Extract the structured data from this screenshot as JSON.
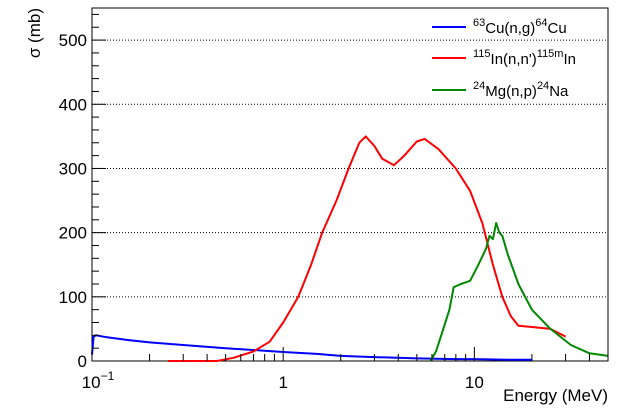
{
  "chart_data": {
    "type": "line",
    "xlabel": "Energy (MeV)",
    "ylabel": "σ (mb)",
    "x_scale": "log",
    "xlim": [
      0.1,
      50
    ],
    "ylim": [
      0,
      550
    ],
    "grid": "horizontal-dotted",
    "legend_position": "top-right",
    "x_ticks": [
      {
        "value": 0.1,
        "base": "10",
        "exp": "−1"
      },
      {
        "value": 1,
        "label": "1"
      },
      {
        "value": 10,
        "label": "10"
      }
    ],
    "y_ticks": [
      0,
      100,
      200,
      300,
      400,
      500
    ],
    "series": [
      {
        "name": "⁶³Cu(n,g)⁶⁴Cu",
        "name_parts": [
          {
            "t": "63",
            "sup": true
          },
          {
            "t": "Cu(n,g)"
          },
          {
            "t": "64",
            "sup": true
          },
          {
            "t": "Cu"
          }
        ],
        "color": "#0000ff",
        "points": [
          [
            0.1,
            10
          ],
          [
            0.102,
            38
          ],
          [
            0.105,
            40
          ],
          [
            0.12,
            37
          ],
          [
            0.15,
            33
          ],
          [
            0.2,
            29
          ],
          [
            0.3,
            25
          ],
          [
            0.5,
            20
          ],
          [
            0.8,
            16
          ],
          [
            1.0,
            14
          ],
          [
            1.5,
            11
          ],
          [
            2.0,
            8
          ],
          [
            3.0,
            6
          ],
          [
            5.0,
            4
          ],
          [
            8.0,
            3
          ],
          [
            10.0,
            3
          ],
          [
            15.0,
            2
          ],
          [
            20.0,
            2
          ]
        ]
      },
      {
        "name": "¹¹⁵In(n,n')¹¹⁵ᵐIn",
        "name_parts": [
          {
            "t": "115",
            "sup": true
          },
          {
            "t": "In(n,n')"
          },
          {
            "t": "115m",
            "sup": true
          },
          {
            "t": "In"
          }
        ],
        "color": "#ff0000",
        "points": [
          [
            0.25,
            0
          ],
          [
            0.45,
            0
          ],
          [
            0.55,
            5
          ],
          [
            0.7,
            15
          ],
          [
            0.85,
            30
          ],
          [
            1.0,
            60
          ],
          [
            1.2,
            100
          ],
          [
            1.4,
            150
          ],
          [
            1.6,
            200
          ],
          [
            1.9,
            250
          ],
          [
            2.2,
            300
          ],
          [
            2.5,
            340
          ],
          [
            2.7,
            350
          ],
          [
            3.0,
            335
          ],
          [
            3.3,
            315
          ],
          [
            3.8,
            305
          ],
          [
            4.3,
            320
          ],
          [
            5.0,
            342
          ],
          [
            5.5,
            346
          ],
          [
            6.5,
            330
          ],
          [
            8.0,
            300
          ],
          [
            9.5,
            265
          ],
          [
            11.0,
            215
          ],
          [
            12.5,
            150
          ],
          [
            14.0,
            100
          ],
          [
            15.5,
            70
          ],
          [
            17.0,
            55
          ],
          [
            20.0,
            53
          ],
          [
            25.0,
            50
          ],
          [
            30.0,
            38
          ]
        ]
      },
      {
        "name": "²⁴Mg(n,p)²⁴Na",
        "name_parts": [
          {
            "t": "24",
            "sup": true
          },
          {
            "t": "Mg(n,p)"
          },
          {
            "t": "24",
            "sup": true
          },
          {
            "t": "Na"
          }
        ],
        "color": "#008800",
        "points": [
          [
            5.9,
            0
          ],
          [
            6.3,
            15
          ],
          [
            6.8,
            45
          ],
          [
            7.4,
            80
          ],
          [
            7.8,
            115
          ],
          [
            8.5,
            120
          ],
          [
            9.5,
            125
          ],
          [
            10.5,
            150
          ],
          [
            11.5,
            175
          ],
          [
            12.0,
            195
          ],
          [
            12.5,
            190
          ],
          [
            13.0,
            215
          ],
          [
            13.5,
            200
          ],
          [
            14.0,
            195
          ],
          [
            15.0,
            165
          ],
          [
            17.0,
            120
          ],
          [
            20.0,
            80
          ],
          [
            25.0,
            50
          ],
          [
            32.0,
            25
          ],
          [
            40.0,
            12
          ],
          [
            50.0,
            8
          ]
        ]
      }
    ]
  }
}
